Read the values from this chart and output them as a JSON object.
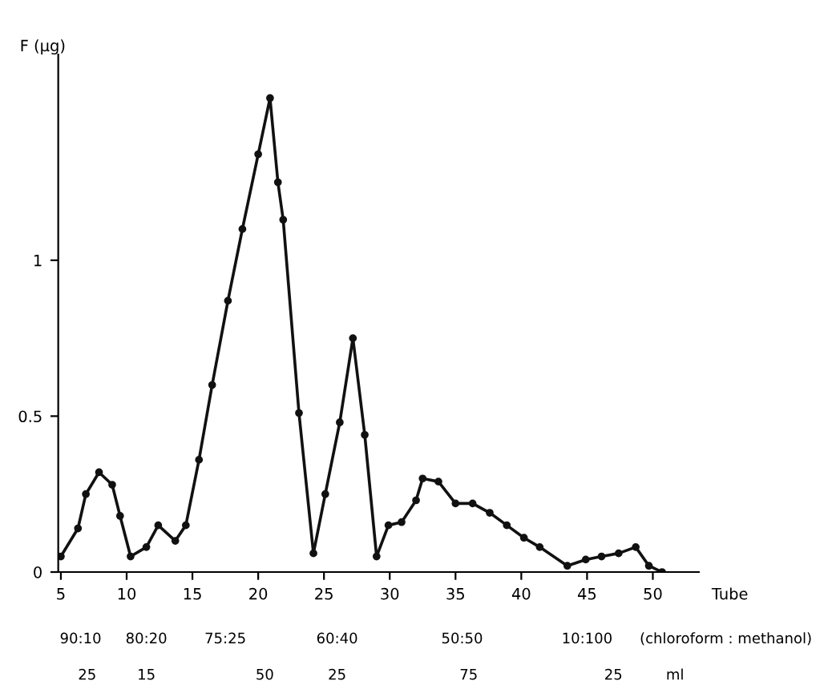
{
  "chart_data": {
    "type": "line",
    "ylabel": "F (μg)",
    "xlabel": "Tube",
    "x": [
      5,
      6.3,
      6.9,
      7.9,
      8.9,
      9.5,
      10.3,
      11.5,
      12.4,
      13.7,
      14.5,
      15.5,
      16.5,
      17.7,
      18.8,
      20.0,
      20.9,
      21.5,
      21.9,
      23.1,
      24.2,
      25.1,
      26.2,
      27.2,
      28.1,
      29.0,
      29.9,
      30.9,
      32.0,
      32.5,
      33.7,
      35.0,
      36.3,
      37.6,
      38.9,
      40.2,
      41.4,
      43.5,
      44.9,
      46.1,
      47.4,
      48.7,
      49.7,
      50.7
    ],
    "series": [
      {
        "color": "#111111",
        "values": [
          0.05,
          0.14,
          0.25,
          0.32,
          0.28,
          0.18,
          0.05,
          0.08,
          0.15,
          0.1,
          0.15,
          0.36,
          0.6,
          0.87,
          1.1,
          1.34,
          1.52,
          1.25,
          1.13,
          0.51,
          0.06,
          0.25,
          0.48,
          0.75,
          0.44,
          0.05,
          0.15,
          0.16,
          0.23,
          0.3,
          0.29,
          0.22,
          0.22,
          0.19,
          0.15,
          0.11,
          0.08,
          0.02,
          0.04,
          0.05,
          0.06,
          0.08,
          0.02,
          0.0
        ]
      }
    ],
    "marker": "circle",
    "line_style": "solid",
    "grid": false,
    "legend": false,
    "xlim": [
      4.8,
      53.5
    ],
    "ylim": [
      0,
      1.66
    ],
    "xticks": [
      5,
      10,
      15,
      20,
      25,
      30,
      35,
      40,
      45,
      50
    ],
    "yticks": [
      0,
      0.5,
      1
    ],
    "annotations": [
      "90:10",
      "80:20",
      "75:25",
      "60:40",
      "50:50",
      "10:100",
      "(chloroform : methanol)",
      "25",
      "15",
      "50",
      "25",
      "75",
      "25",
      "ml"
    ]
  }
}
